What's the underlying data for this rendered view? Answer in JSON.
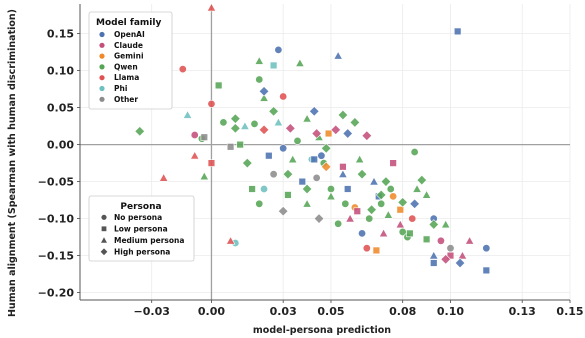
{
  "chart_data": {
    "type": "scatter",
    "title": "",
    "xlabel": "model-persona prediction",
    "ylabel": "Human alignment (Spearman with human discrimination)",
    "xlim": [
      -0.055,
      0.15
    ],
    "ylim": [
      -0.21,
      0.19
    ],
    "x_ticks": [
      {
        "value": -0.025,
        "label": "−0.03"
      },
      {
        "value": 0.0,
        "label": "0.00"
      },
      {
        "value": 0.03,
        "label": "0.03"
      },
      {
        "value": 0.05,
        "label": "0.05"
      },
      {
        "value": 0.08,
        "label": "0.08"
      },
      {
        "value": 0.1,
        "label": "0.10"
      },
      {
        "value": 0.13,
        "label": "0.13"
      },
      {
        "value": 0.15,
        "label": "0.15"
      }
    ],
    "y_ticks": [
      {
        "value": 0.15,
        "label": "0.15"
      },
      {
        "value": 0.1,
        "label": "0.10"
      },
      {
        "value": 0.05,
        "label": "0.05"
      },
      {
        "value": 0.0,
        "label": "0.00"
      },
      {
        "value": -0.05,
        "label": "−0.05"
      },
      {
        "value": -0.1,
        "label": "−0.10"
      },
      {
        "value": -0.15,
        "label": "−0.15"
      },
      {
        "value": -0.2,
        "label": "−0.20"
      }
    ],
    "grid": true,
    "reference_lines": {
      "x": 0.0,
      "y": 0.0
    },
    "model_family_legend": {
      "title": "Model family",
      "placement": "top-left",
      "items": [
        {
          "name": "OpenAI",
          "color": "#4c72b0"
        },
        {
          "name": "Claude",
          "color": "#c44e7a"
        },
        {
          "name": "Gemini",
          "color": "#ee8a2a"
        },
        {
          "name": "Qwen",
          "color": "#55a555"
        },
        {
          "name": "Llama",
          "color": "#e05252"
        },
        {
          "name": "Phi",
          "color": "#6ebfbf"
        },
        {
          "name": "Other",
          "color": "#8c8c8c"
        }
      ]
    },
    "persona_legend": {
      "title": "Persona",
      "placement": "lower-left",
      "items": [
        {
          "name": "No persona",
          "marker": "circle"
        },
        {
          "name": "Low persona",
          "marker": "square"
        },
        {
          "name": "Medium persona",
          "marker": "triangle"
        },
        {
          "name": "High persona",
          "marker": "diamond"
        }
      ]
    },
    "points": [
      {
        "x": 0.028,
        "y": 0.128,
        "family": "OpenAI",
        "persona": "None"
      },
      {
        "x": 0.02,
        "y": 0.088,
        "family": "Qwen",
        "persona": "None"
      },
      {
        "x": 0.03,
        "y": 0.065,
        "family": "Llama",
        "persona": "None"
      },
      {
        "x": -0.012,
        "y": 0.102,
        "family": "Llama",
        "persona": "None"
      },
      {
        "x": 0.0,
        "y": 0.055,
        "family": "Llama",
        "persona": "None"
      },
      {
        "x": 0.005,
        "y": 0.03,
        "family": "Qwen",
        "persona": "None"
      },
      {
        "x": -0.007,
        "y": 0.013,
        "family": "Claude",
        "persona": "None"
      },
      {
        "x": -0.004,
        "y": 0.008,
        "family": "Qwen",
        "persona": "None"
      },
      {
        "x": 0.018,
        "y": 0.028,
        "family": "Qwen",
        "persona": "None"
      },
      {
        "x": 0.03,
        "y": -0.005,
        "family": "OpenAI",
        "persona": "None"
      },
      {
        "x": 0.036,
        "y": 0.005,
        "family": "Qwen",
        "persona": "None"
      },
      {
        "x": 0.046,
        "y": -0.015,
        "family": "OpenAI",
        "persona": "None"
      },
      {
        "x": 0.044,
        "y": -0.045,
        "family": "Other",
        "persona": "None"
      },
      {
        "x": 0.022,
        "y": -0.06,
        "family": "Phi",
        "persona": "None"
      },
      {
        "x": 0.01,
        "y": -0.133,
        "family": "Phi",
        "persona": "None"
      },
      {
        "x": 0.047,
        "y": -0.025,
        "family": "Qwen",
        "persona": "None"
      },
      {
        "x": 0.05,
        "y": -0.06,
        "family": "Qwen",
        "persona": "None"
      },
      {
        "x": 0.056,
        "y": -0.08,
        "family": "Qwen",
        "persona": "None"
      },
      {
        "x": 0.06,
        "y": -0.085,
        "family": "Gemini",
        "persona": "None"
      },
      {
        "x": 0.053,
        "y": -0.107,
        "family": "Qwen",
        "persona": "None"
      },
      {
        "x": 0.063,
        "y": -0.12,
        "family": "OpenAI",
        "persona": "None"
      },
      {
        "x": 0.066,
        "y": -0.1,
        "family": "Qwen",
        "persona": "None"
      },
      {
        "x": 0.071,
        "y": -0.08,
        "family": "Qwen",
        "persona": "None"
      },
      {
        "x": 0.075,
        "y": -0.06,
        "family": "Qwen",
        "persona": "None"
      },
      {
        "x": 0.08,
        "y": -0.118,
        "family": "Qwen",
        "persona": "None"
      },
      {
        "x": 0.082,
        "y": -0.125,
        "family": "Qwen",
        "persona": "None"
      },
      {
        "x": 0.085,
        "y": -0.01,
        "family": "Qwen",
        "persona": "None"
      },
      {
        "x": 0.093,
        "y": -0.1,
        "family": "OpenAI",
        "persona": "None"
      },
      {
        "x": 0.096,
        "y": -0.13,
        "family": "Claude",
        "persona": "None"
      },
      {
        "x": 0.1,
        "y": -0.14,
        "family": "Other",
        "persona": "None"
      },
      {
        "x": 0.115,
        "y": -0.14,
        "family": "OpenAI",
        "persona": "None"
      },
      {
        "x": 0.065,
        "y": -0.14,
        "family": "Llama",
        "persona": "None"
      },
      {
        "x": 0.076,
        "y": -0.07,
        "family": "Gemini",
        "persona": "None"
      },
      {
        "x": 0.026,
        "y": -0.04,
        "family": "Other",
        "persona": "None"
      },
      {
        "x": 0.02,
        "y": -0.08,
        "family": "Qwen",
        "persona": "None"
      },
      {
        "x": 0.042,
        "y": -0.02,
        "family": "Phi",
        "persona": "None"
      },
      {
        "x": 0.084,
        "y": -0.1,
        "family": "Llama",
        "persona": "None"
      },
      {
        "x": 0.103,
        "y": 0.153,
        "family": "OpenAI",
        "persona": "Low"
      },
      {
        "x": 0.026,
        "y": 0.107,
        "family": "Phi",
        "persona": "Low"
      },
      {
        "x": 0.003,
        "y": 0.08,
        "family": "Qwen",
        "persona": "Low"
      },
      {
        "x": -0.003,
        "y": 0.01,
        "family": "Other",
        "persona": "Low"
      },
      {
        "x": 0.008,
        "y": -0.003,
        "family": "Other",
        "persona": "Low"
      },
      {
        "x": 0.0,
        "y": -0.025,
        "family": "Llama",
        "persona": "Low"
      },
      {
        "x": 0.017,
        "y": -0.06,
        "family": "Qwen",
        "persona": "Low"
      },
      {
        "x": 0.024,
        "y": -0.015,
        "family": "OpenAI",
        "persona": "Low"
      },
      {
        "x": 0.032,
        "y": -0.068,
        "family": "Qwen",
        "persona": "Low"
      },
      {
        "x": 0.043,
        "y": -0.02,
        "family": "OpenAI",
        "persona": "Low"
      },
      {
        "x": 0.049,
        "y": 0.015,
        "family": "Gemini",
        "persona": "Low"
      },
      {
        "x": 0.055,
        "y": -0.03,
        "family": "Claude",
        "persona": "Low"
      },
      {
        "x": 0.057,
        "y": -0.06,
        "family": "OpenAI",
        "persona": "Low"
      },
      {
        "x": 0.061,
        "y": -0.09,
        "family": "Claude",
        "persona": "Low"
      },
      {
        "x": 0.07,
        "y": -0.07,
        "family": "OpenAI",
        "persona": "Low"
      },
      {
        "x": 0.069,
        "y": -0.143,
        "family": "Gemini",
        "persona": "Low"
      },
      {
        "x": 0.079,
        "y": -0.088,
        "family": "Gemini",
        "persona": "Low"
      },
      {
        "x": 0.083,
        "y": -0.12,
        "family": "Qwen",
        "persona": "Low"
      },
      {
        "x": 0.09,
        "y": -0.128,
        "family": "Qwen",
        "persona": "Low"
      },
      {
        "x": 0.093,
        "y": -0.16,
        "family": "OpenAI",
        "persona": "Low"
      },
      {
        "x": 0.1,
        "y": -0.15,
        "family": "Claude",
        "persona": "Low"
      },
      {
        "x": 0.115,
        "y": -0.17,
        "family": "OpenAI",
        "persona": "Low"
      },
      {
        "x": 0.012,
        "y": 0.0,
        "family": "Qwen",
        "persona": "Low"
      },
      {
        "x": 0.038,
        "y": -0.05,
        "family": "OpenAI",
        "persona": "Low"
      },
      {
        "x": 0.076,
        "y": -0.025,
        "family": "Claude",
        "persona": "Low"
      },
      {
        "x": 0.0,
        "y": 0.185,
        "family": "Llama",
        "persona": "Medium"
      },
      {
        "x": 0.053,
        "y": 0.12,
        "family": "OpenAI",
        "persona": "Medium"
      },
      {
        "x": 0.02,
        "y": 0.113,
        "family": "Qwen",
        "persona": "Medium"
      },
      {
        "x": 0.037,
        "y": 0.11,
        "family": "Qwen",
        "persona": "Medium"
      },
      {
        "x": 0.022,
        "y": 0.063,
        "family": "Qwen",
        "persona": "Medium"
      },
      {
        "x": -0.01,
        "y": 0.04,
        "family": "Phi",
        "persona": "Medium"
      },
      {
        "x": -0.007,
        "y": -0.015,
        "family": "Llama",
        "persona": "Medium"
      },
      {
        "x": -0.003,
        "y": -0.043,
        "family": "Qwen",
        "persona": "Medium"
      },
      {
        "x": -0.02,
        "y": -0.045,
        "family": "Llama",
        "persona": "Medium"
      },
      {
        "x": 0.014,
        "y": 0.025,
        "family": "Phi",
        "persona": "Medium"
      },
      {
        "x": 0.028,
        "y": 0.03,
        "family": "Phi",
        "persona": "Medium"
      },
      {
        "x": 0.034,
        "y": -0.02,
        "family": "Qwen",
        "persona": "Medium"
      },
      {
        "x": 0.04,
        "y": 0.035,
        "family": "Qwen",
        "persona": "Medium"
      },
      {
        "x": 0.045,
        "y": 0.01,
        "family": "Qwen",
        "persona": "Medium"
      },
      {
        "x": 0.05,
        "y": -0.07,
        "family": "Qwen",
        "persona": "Medium"
      },
      {
        "x": 0.055,
        "y": -0.04,
        "family": "OpenAI",
        "persona": "Medium"
      },
      {
        "x": 0.062,
        "y": -0.02,
        "family": "Qwen",
        "persona": "Medium"
      },
      {
        "x": 0.068,
        "y": -0.05,
        "family": "OpenAI",
        "persona": "Medium"
      },
      {
        "x": 0.072,
        "y": -0.12,
        "family": "Claude",
        "persona": "Medium"
      },
      {
        "x": 0.074,
        "y": -0.095,
        "family": "Qwen",
        "persona": "Medium"
      },
      {
        "x": 0.086,
        "y": -0.06,
        "family": "Qwen",
        "persona": "Medium"
      },
      {
        "x": 0.09,
        "y": -0.068,
        "family": "Qwen",
        "persona": "Medium"
      },
      {
        "x": 0.098,
        "y": -0.108,
        "family": "Qwen",
        "persona": "Medium"
      },
      {
        "x": 0.105,
        "y": -0.15,
        "family": "Claude",
        "persona": "Medium"
      },
      {
        "x": 0.108,
        "y": -0.13,
        "family": "Claude",
        "persona": "Medium"
      },
      {
        "x": 0.008,
        "y": -0.13,
        "family": "Llama",
        "persona": "Medium"
      },
      {
        "x": 0.04,
        "y": -0.08,
        "family": "Qwen",
        "persona": "Medium"
      },
      {
        "x": 0.058,
        "y": -0.1,
        "family": "Claude",
        "persona": "Medium"
      },
      {
        "x": 0.079,
        "y": -0.108,
        "family": "Claude",
        "persona": "Medium"
      },
      {
        "x": 0.093,
        "y": -0.15,
        "family": "OpenAI",
        "persona": "Medium"
      },
      {
        "x": -0.03,
        "y": 0.018,
        "family": "Qwen",
        "persona": "High"
      },
      {
        "x": 0.01,
        "y": 0.022,
        "family": "Qwen",
        "persona": "High"
      },
      {
        "x": 0.022,
        "y": 0.072,
        "family": "OpenAI",
        "persona": "High"
      },
      {
        "x": 0.043,
        "y": 0.045,
        "family": "OpenAI",
        "persona": "High"
      },
      {
        "x": 0.026,
        "y": 0.045,
        "family": "Qwen",
        "persona": "High"
      },
      {
        "x": 0.033,
        "y": 0.022,
        "family": "Claude",
        "persona": "High"
      },
      {
        "x": 0.022,
        "y": 0.02,
        "family": "Llama",
        "persona": "High"
      },
      {
        "x": 0.032,
        "y": -0.04,
        "family": "Qwen",
        "persona": "High"
      },
      {
        "x": 0.04,
        "y": -0.06,
        "family": "Qwen",
        "persona": "High"
      },
      {
        "x": 0.048,
        "y": -0.005,
        "family": "Qwen",
        "persona": "High"
      },
      {
        "x": 0.057,
        "y": 0.015,
        "family": "OpenAI",
        "persona": "High"
      },
      {
        "x": 0.065,
        "y": 0.012,
        "family": "Claude",
        "persona": "High"
      },
      {
        "x": 0.06,
        "y": 0.03,
        "family": "Qwen",
        "persona": "High"
      },
      {
        "x": 0.052,
        "y": 0.02,
        "family": "Claude",
        "persona": "High"
      },
      {
        "x": 0.063,
        "y": -0.04,
        "family": "Qwen",
        "persona": "High"
      },
      {
        "x": 0.067,
        "y": -0.088,
        "family": "Qwen",
        "persona": "High"
      },
      {
        "x": 0.071,
        "y": -0.068,
        "family": "Qwen",
        "persona": "High"
      },
      {
        "x": 0.073,
        "y": -0.05,
        "family": "Qwen",
        "persona": "High"
      },
      {
        "x": 0.08,
        "y": -0.078,
        "family": "Qwen",
        "persona": "High"
      },
      {
        "x": 0.088,
        "y": -0.048,
        "family": "Qwen",
        "persona": "High"
      },
      {
        "x": 0.085,
        "y": -0.08,
        "family": "OpenAI",
        "persona": "High"
      },
      {
        "x": 0.093,
        "y": -0.108,
        "family": "Qwen",
        "persona": "High"
      },
      {
        "x": 0.098,
        "y": -0.155,
        "family": "Claude",
        "persona": "High"
      },
      {
        "x": 0.104,
        "y": -0.16,
        "family": "OpenAI",
        "persona": "High"
      },
      {
        "x": 0.045,
        "y": -0.1,
        "family": "Other",
        "persona": "High"
      },
      {
        "x": 0.03,
        "y": -0.09,
        "family": "Other",
        "persona": "High"
      },
      {
        "x": 0.01,
        "y": 0.035,
        "family": "Qwen",
        "persona": "High"
      },
      {
        "x": 0.015,
        "y": -0.025,
        "family": "Qwen",
        "persona": "High"
      },
      {
        "x": 0.044,
        "y": 0.015,
        "family": "Claude",
        "persona": "High"
      },
      {
        "x": 0.048,
        "y": -0.03,
        "family": "Gemini",
        "persona": "High"
      },
      {
        "x": 0.055,
        "y": 0.04,
        "family": "Qwen",
        "persona": "High"
      }
    ]
  }
}
